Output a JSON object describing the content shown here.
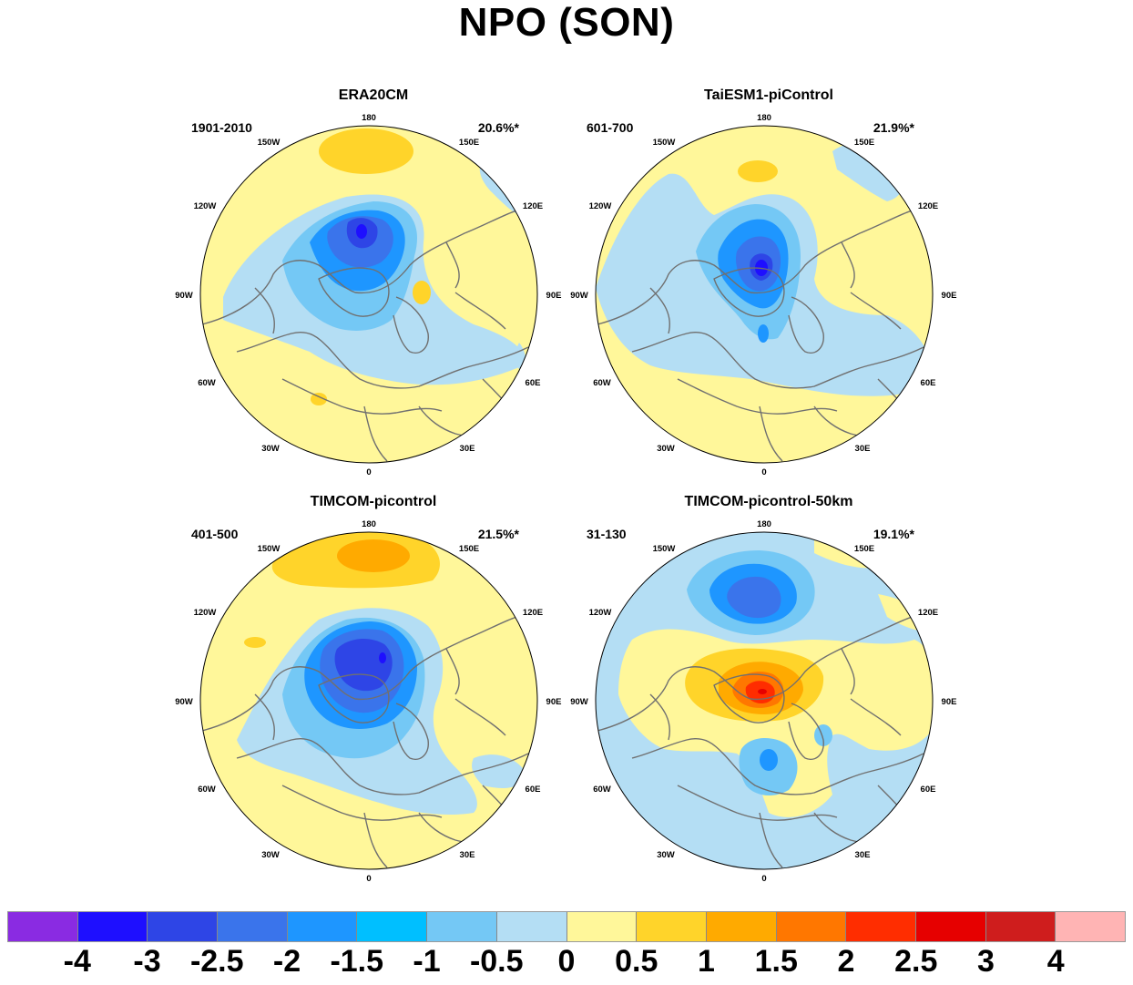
{
  "title": "NPO (SON)",
  "longitude_labels": [
    "180",
    "150E",
    "120E",
    "90E",
    "60E",
    "30E",
    "0",
    "30W",
    "60W",
    "90W",
    "120W",
    "150W"
  ],
  "panels": [
    {
      "title": "ERA20CM",
      "period": "1901-2010",
      "explained_variance": "20.6%*"
    },
    {
      "title": "TaiESM1-piControl",
      "period": "601-700",
      "explained_variance": "21.9%*"
    },
    {
      "title": "TIMCOM-picontrol",
      "period": "401-500",
      "explained_variance": "21.5%*"
    },
    {
      "title": "TIMCOM-picontrol-50km",
      "period": "31-130",
      "explained_variance": "19.1%*"
    }
  ],
  "colorbar": {
    "colors": [
      "#8a2be2",
      "#1e0fff",
      "#2e45e6",
      "#3a74eb",
      "#1e96ff",
      "#00bfff",
      "#74c8f5",
      "#b4def4",
      "#fff79a",
      "#ffd42a",
      "#ffaa00",
      "#ff7700",
      "#ff2d00",
      "#e60000",
      "#cf1d1d",
      "#ffb4b4"
    ],
    "labels": [
      "-4",
      "-3",
      "-2.5",
      "-2",
      "-1.5",
      "-1",
      "-0.5",
      "0",
      "0.5",
      "1",
      "1.5",
      "2",
      "2.5",
      "3",
      "4"
    ]
  }
}
